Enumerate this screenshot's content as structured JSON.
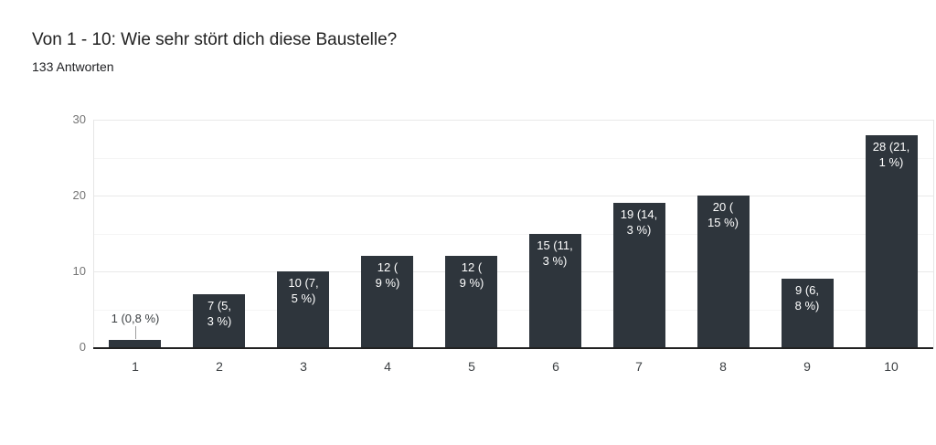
{
  "header": {
    "title": "Von 1 - 10: Wie sehr stört dich diese Baustelle?",
    "subtitle": "133 Antworten"
  },
  "chart_data": {
    "type": "bar",
    "title": "Von 1 - 10: Wie sehr stört dich diese Baustelle?",
    "subtitle": "133 Antworten",
    "categories": [
      "1",
      "2",
      "3",
      "4",
      "5",
      "6",
      "7",
      "8",
      "9",
      "10"
    ],
    "values": [
      1,
      7,
      10,
      12,
      12,
      15,
      19,
      20,
      9,
      28
    ],
    "annotations": [
      "1 (0,8 %)",
      "7 (5,3 %)",
      "10 (7,5 %)",
      "12 (9 %)",
      "12 (9 %)",
      "15 (11,3 %)",
      "19 (14,3 %)",
      "20 (15 %)",
      "9 (6,8 %)",
      "28 (21,1 %)"
    ],
    "annotation_lines": [
      [
        "1 (0,8 %)"
      ],
      [
        "7 (5,",
        "3 %)"
      ],
      [
        "10 (7,",
        "5 %)"
      ],
      [
        "12 (",
        "9 %)"
      ],
      [
        "12 (",
        "9 %)"
      ],
      [
        "15 (11,",
        "3 %)"
      ],
      [
        "19 (14,",
        "3 %)"
      ],
      [
        "20 (",
        "15 %)"
      ],
      [
        "9 (6,",
        "8 %)"
      ],
      [
        "28 (21,",
        "1 %)"
      ]
    ],
    "annotation_placement": [
      "outside",
      "inside",
      "inside",
      "inside",
      "inside",
      "inside",
      "inside",
      "inside",
      "inside",
      "inside"
    ],
    "xlabel": "",
    "ylabel": "",
    "yticks": [
      0,
      10,
      20,
      30
    ],
    "ylim": [
      0,
      30
    ],
    "grid": true,
    "gridline_step": 5,
    "legend": "none",
    "colors": {
      "bar": "#2e353c",
      "title_text": "#212121",
      "subtitle_text": "#202124",
      "ytick_text": "#757575",
      "xtick_text": "#3c4043",
      "annotation_inside_text": "#ffffff",
      "annotation_outside_text": "#3c4043",
      "gridline_major": "#e9e9e9",
      "gridline_minor": "#f5f5f5",
      "baseline": "#212121",
      "plot_border": "#e6e6e6",
      "leader_line": "#9e9e9e",
      "background": "#ffffff"
    }
  }
}
